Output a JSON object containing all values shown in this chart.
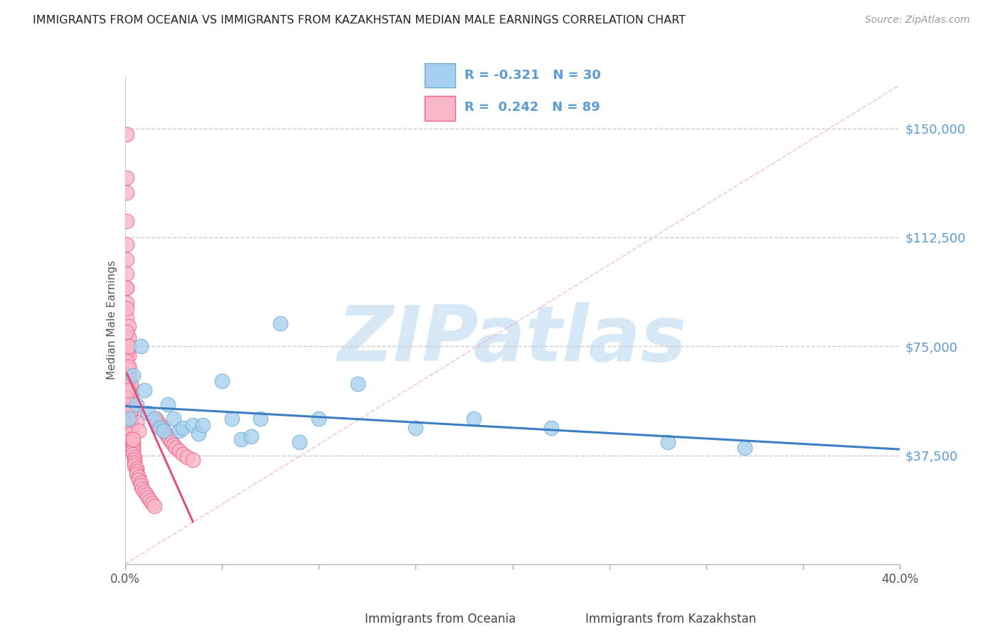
{
  "title": "IMMIGRANTS FROM OCEANIA VS IMMIGRANTS FROM KAZAKHSTAN MEDIAN MALE EARNINGS CORRELATION CHART",
  "source": "Source: ZipAtlas.com",
  "ylabel": "Median Male Earnings",
  "ytick_labels": [
    "$37,500",
    "$75,000",
    "$112,500",
    "$150,000"
  ],
  "ytick_values": [
    37500,
    75000,
    112500,
    150000
  ],
  "ymin": 0,
  "ymax": 168000,
  "xmin": 0.0,
  "xmax": 0.4,
  "color_oceania_fill": "#A8D0EE",
  "color_oceania_edge": "#6aaed6",
  "color_kazakhstan_fill": "#F9B8C8",
  "color_kazakhstan_edge": "#F06090",
  "color_trendline_oceania": "#3A7EC6",
  "color_trendline_kazakhstan": "#E0507A",
  "color_refline": "#E8C0CC",
  "color_title": "#222222",
  "color_source": "#999999",
  "color_yticks": "#5B9BD5",
  "color_watermark": "#D6E8F5",
  "watermark_text": "ZIPatlas",
  "oceania_x": [
    0.002,
    0.004,
    0.006,
    0.008,
    0.01,
    0.012,
    0.015,
    0.018,
    0.02,
    0.022,
    0.025,
    0.028,
    0.03,
    0.035,
    0.038,
    0.04,
    0.05,
    0.055,
    0.06,
    0.065,
    0.07,
    0.08,
    0.09,
    0.1,
    0.12,
    0.15,
    0.18,
    0.22,
    0.28,
    0.32
  ],
  "oceania_y": [
    50000,
    65000,
    55000,
    75000,
    60000,
    52000,
    50000,
    47000,
    46000,
    55000,
    50000,
    46000,
    47000,
    48000,
    45000,
    48000,
    63000,
    50000,
    43000,
    44000,
    50000,
    83000,
    42000,
    50000,
    62000,
    47000,
    50000,
    47000,
    42000,
    40000
  ],
  "kazakhstan_x": [
    0.001,
    0.001,
    0.001,
    0.001,
    0.001,
    0.001,
    0.001,
    0.001,
    0.001,
    0.001,
    0.002,
    0.002,
    0.002,
    0.002,
    0.002,
    0.002,
    0.002,
    0.002,
    0.002,
    0.002,
    0.003,
    0.003,
    0.003,
    0.003,
    0.003,
    0.003,
    0.003,
    0.004,
    0.004,
    0.004,
    0.004,
    0.004,
    0.005,
    0.005,
    0.005,
    0.005,
    0.006,
    0.006,
    0.006,
    0.007,
    0.007,
    0.008,
    0.008,
    0.009,
    0.01,
    0.011,
    0.012,
    0.013,
    0.014,
    0.015,
    0.016,
    0.017,
    0.018,
    0.019,
    0.02,
    0.021,
    0.022,
    0.023,
    0.024,
    0.025,
    0.026,
    0.028,
    0.03,
    0.032,
    0.035,
    0.001,
    0.001,
    0.002,
    0.002,
    0.003,
    0.003,
    0.004,
    0.005,
    0.006,
    0.007,
    0.001,
    0.002,
    0.002,
    0.003,
    0.001,
    0.004,
    0.003,
    0.002,
    0.001,
    0.001
  ],
  "kazakhstan_y": [
    148000,
    133000,
    128000,
    118000,
    110000,
    105000,
    100000,
    95000,
    90000,
    85000,
    82000,
    78000,
    75000,
    72000,
    68000,
    65000,
    63000,
    60000,
    58000,
    55000,
    53000,
    51000,
    50000,
    48000,
    46000,
    45000,
    43000,
    42000,
    41000,
    40000,
    39000,
    38000,
    37000,
    36000,
    35000,
    34000,
    33000,
    32000,
    31000,
    30000,
    29000,
    28000,
    27000,
    26000,
    25000,
    24000,
    23000,
    22000,
    21000,
    20000,
    50000,
    49000,
    48000,
    47000,
    46000,
    45000,
    44000,
    43000,
    42000,
    41000,
    40000,
    39000,
    38000,
    37000,
    36000,
    73000,
    70000,
    67000,
    64000,
    61000,
    58000,
    55000,
    52000,
    49000,
    46000,
    80000,
    75000,
    68000,
    62000,
    57000,
    43000,
    53000,
    60000,
    88000,
    95000
  ]
}
